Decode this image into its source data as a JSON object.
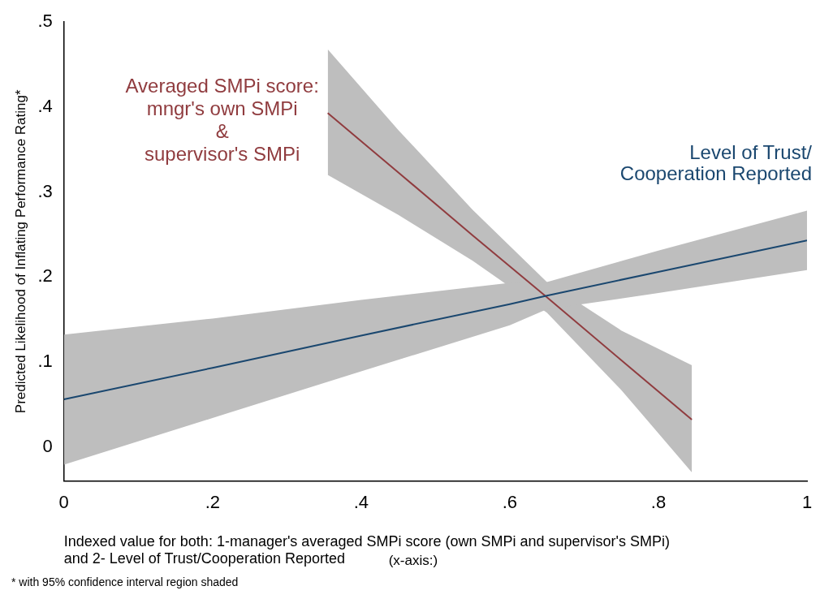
{
  "chart_data": {
    "type": "line",
    "ylabel": "Predicted Likelihood of Inflating Performance Rating*",
    "xlabel": "Indexed value for both: 1-manager's averaged SMPi score (own SMPi and supervisor's SMPi)\nand 2- Level of Trust/Cooperation Reported",
    "annotations": [
      "(x-axis:)",
      "* with 95% confidence interval region shaded"
    ],
    "xlim": [
      0,
      1
    ],
    "xticks": [
      0,
      {
        "value": 0.2,
        "label": ".2"
      },
      {
        "value": 0.4,
        "label": ".4"
      },
      {
        "value": 0.6,
        "label": ".6"
      },
      {
        "value": 0.8,
        "label": ".8"
      },
      1
    ],
    "ylim": [
      -0.04,
      0.5
    ],
    "yticks": [
      0,
      {
        "value": 0.1,
        "label": ".1"
      },
      {
        "value": 0.2,
        "label": ".2"
      },
      {
        "value": 0.3,
        "label": ".3"
      },
      {
        "value": 0.4,
        "label": ".4"
      },
      {
        "value": 0.5,
        "label": ".5"
      }
    ],
    "grid": false,
    "legend": false,
    "marker": "none",
    "line_style": "solid",
    "series": [
      {
        "name": "Level of Trust/\nCooperation Reported",
        "color": "#1a476f",
        "x": [
          0,
          0.2,
          0.4,
          0.6,
          0.65,
          0.8,
          1
        ],
        "values": [
          0.056,
          0.093,
          0.131,
          0.168,
          0.178,
          0.206,
          0.243
        ],
        "lower": [
          -0.021,
          0.034,
          0.089,
          0.143,
          0.162,
          0.181,
          0.208
        ],
        "upper": [
          0.132,
          0.151,
          0.173,
          0.193,
          0.194,
          0.231,
          0.278
        ]
      },
      {
        "name": "Averaged SMPi score:\nmngr's own SMPi\n&\nsupervisor's SMPi",
        "color": "#903c3f",
        "x": [
          0.355,
          0.45,
          0.55,
          0.65,
          0.75,
          0.845
        ],
        "values": [
          0.393,
          0.323,
          0.249,
          0.176,
          0.102,
          0.032
        ],
        "lower": [
          0.32,
          0.273,
          0.219,
          0.158,
          0.067,
          -0.03
        ],
        "upper": [
          0.468,
          0.373,
          0.279,
          0.194,
          0.137,
          0.096
        ]
      }
    ]
  }
}
